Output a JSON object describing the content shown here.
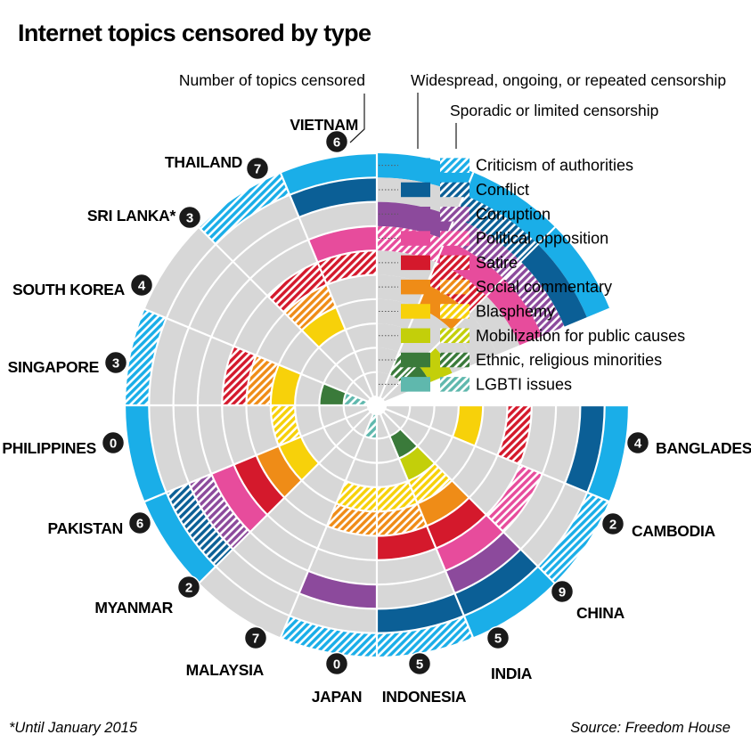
{
  "title": "Internet topics censored by type",
  "header": {
    "count_label": "Number of topics censored",
    "widespread_label": "Widespread, ongoing, or repeated censorship",
    "sporadic_label": "Sporadic or limited censorship"
  },
  "footnote": "*Until January 2015",
  "source": "Source: Freedom House",
  "chart_data": {
    "type": "radial",
    "title": "Internet topics censored by type",
    "topics": [
      {
        "name": "Criticism of authorities",
        "color": "#1aaee8"
      },
      {
        "name": "Conflict",
        "color": "#0b5f96"
      },
      {
        "name": "Corruption",
        "color": "#8c4a9c"
      },
      {
        "name": "Political opposition",
        "color": "#e74c9c"
      },
      {
        "name": "Satire",
        "color": "#d4192c"
      },
      {
        "name": "Social commentary",
        "color": "#ef8c17"
      },
      {
        "name": "Blasphemy",
        "color": "#f7d10a"
      },
      {
        "name": "Mobilization for public causes",
        "color": "#c3cf0a"
      },
      {
        "name": "Ethnic, religious minorities",
        "color": "#3a7a3a"
      },
      {
        "name": "LGBTI issues",
        "color": "#5fb8ad"
      }
    ],
    "censorship_levels": [
      "Widespread, ongoing, or repeated censorship",
      "Sporadic or limited censorship"
    ],
    "countries": [
      {
        "name": "VIETNAM",
        "count": 6,
        "widespread": [
          "Criticism of authorities",
          "Conflict",
          "Political opposition",
          "Mobilization for public causes",
          "Ethnic, religious minorities"
        ],
        "sporadic": [
          "Corruption"
        ]
      },
      {
        "name": "THAILAND",
        "count": 7,
        "widespread": [
          "Criticism of authorities",
          "Political opposition",
          "Social commentary"
        ],
        "sporadic": [
          "Conflict",
          "Corruption",
          "Satire",
          "Ethnic, religious minorities"
        ]
      },
      {
        "name": "SRI LANKA*",
        "count": 3,
        "widespread": [
          "Criticism of authorities",
          "Corruption"
        ],
        "sporadic": [
          "Political opposition"
        ]
      },
      {
        "name": "SOUTH KOREA",
        "count": 4,
        "widespread": [
          "Criticism of authorities",
          "Conflict",
          "Political opposition"
        ],
        "sporadic": [
          "Satire"
        ]
      },
      {
        "name": "SINGAPORE",
        "count": 3,
        "widespread": [
          "Blasphemy"
        ],
        "sporadic": [
          "Criticism of authorities",
          "Satire",
          "Social commentary"
        ]
      },
      {
        "name": "PHILIPPINES",
        "count": 0,
        "widespread": [],
        "sporadic": []
      },
      {
        "name": "PAKISTAN",
        "count": 6,
        "widespread": [
          "Blasphemy",
          "Ethnic, religious minorities"
        ],
        "sporadic": [
          "Criticism of authorities",
          "Satire",
          "Social commentary",
          "LGBTI issues"
        ]
      },
      {
        "name": "MYANMAR",
        "count": 2,
        "widespread": [
          "Criticism of authorities"
        ],
        "sporadic": [
          "Blasphemy"
        ]
      },
      {
        "name": "MALAYSIA",
        "count": 7,
        "widespread": [
          "Criticism of authorities",
          "Political opposition",
          "Satire",
          "Social commentary",
          "Blasphemy"
        ],
        "sporadic": [
          "Conflict",
          "Corruption"
        ]
      },
      {
        "name": "JAPAN",
        "count": 0,
        "widespread": [],
        "sporadic": []
      },
      {
        "name": "INDONESIA",
        "count": 5,
        "widespread": [
          "Corruption"
        ],
        "sporadic": [
          "Criticism of authorities",
          "Social commentary",
          "Blasphemy",
          "LGBTI issues"
        ]
      },
      {
        "name": "INDIA",
        "count": 5,
        "widespread": [
          "Conflict",
          "Satire"
        ],
        "sporadic": [
          "Criticism of authorities",
          "Social commentary",
          "Blasphemy"
        ]
      },
      {
        "name": "CHINA",
        "count": 9,
        "widespread": [
          "Criticism of authorities",
          "Conflict",
          "Corruption",
          "Political opposition",
          "Satire",
          "Social commentary",
          "Mobilization for public causes",
          "Ethnic, religious minorities"
        ],
        "sporadic": [
          "Blasphemy"
        ]
      },
      {
        "name": "CAMBODIA",
        "count": 2,
        "widespread": [],
        "sporadic": [
          "Criticism of authorities",
          "Political opposition"
        ]
      },
      {
        "name": "BANGLADESH",
        "count": 4,
        "widespread": [
          "Criticism of authorities",
          "Conflict",
          "Blasphemy"
        ],
        "sporadic": [
          "Satire"
        ]
      }
    ]
  }
}
